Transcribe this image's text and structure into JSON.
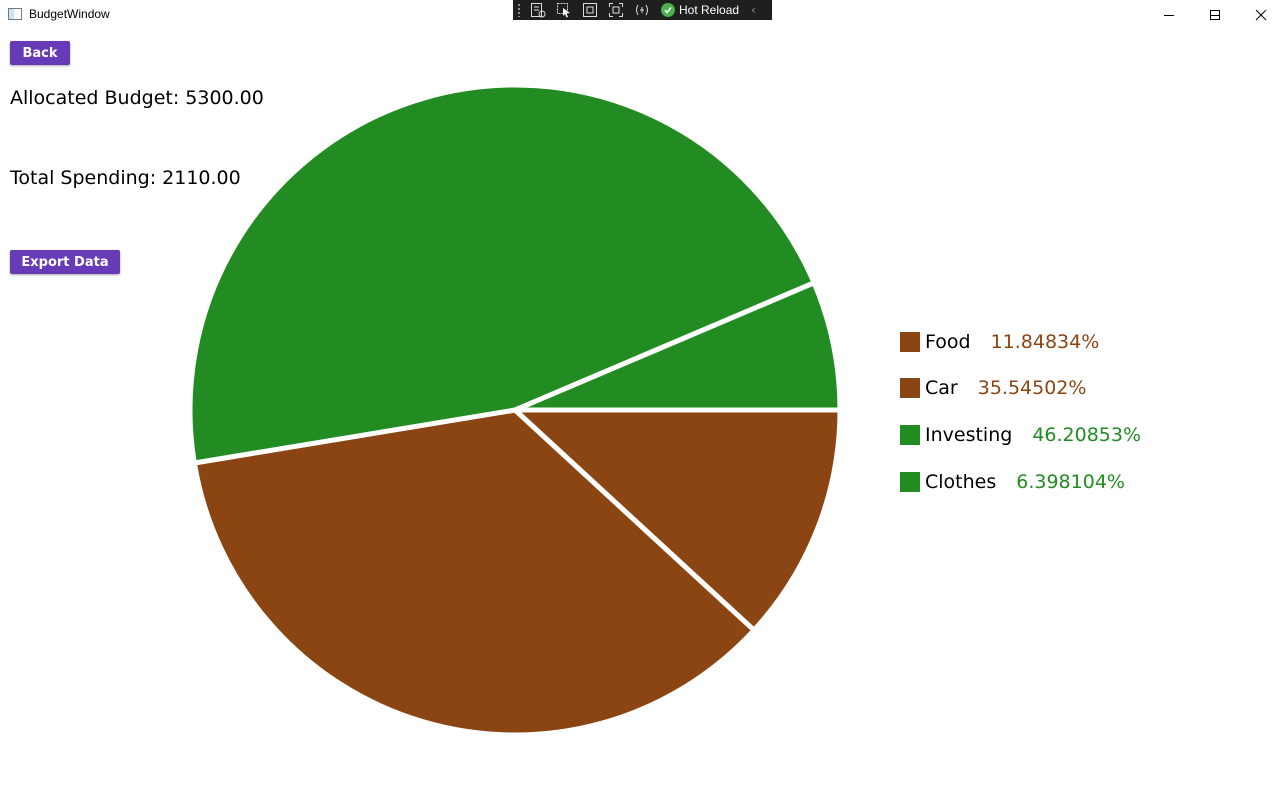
{
  "window": {
    "title": "BudgetWindow"
  },
  "debug_toolbar": {
    "hot_reload_label": "Hot Reload"
  },
  "buttons": {
    "back_label": "Back",
    "export_label": "Export Data"
  },
  "budget": {
    "allocated_text": "Allocated Budget: 5300.00",
    "spending_text": "Total Spending: 2110.00"
  },
  "colors": {
    "brown": "#8B4513",
    "green": "#228B22",
    "button": "#673AB7"
  },
  "chart_data": {
    "type": "pie",
    "title": "",
    "start_angle_deg": 0,
    "direction": "clockwise",
    "slices": [
      {
        "name": "Food",
        "value": 11.84834,
        "label": "11.84834%",
        "color": "#8B4513"
      },
      {
        "name": "Car",
        "value": 35.54502,
        "label": "35.54502%",
        "color": "#8B4513"
      },
      {
        "name": "Investing",
        "value": 46.20853,
        "label": "46.20853%",
        "color": "#228B22"
      },
      {
        "name": "Clothes",
        "value": 6.398104,
        "label": "6.398104%",
        "color": "#228B22"
      }
    ],
    "legend_position": "right"
  }
}
